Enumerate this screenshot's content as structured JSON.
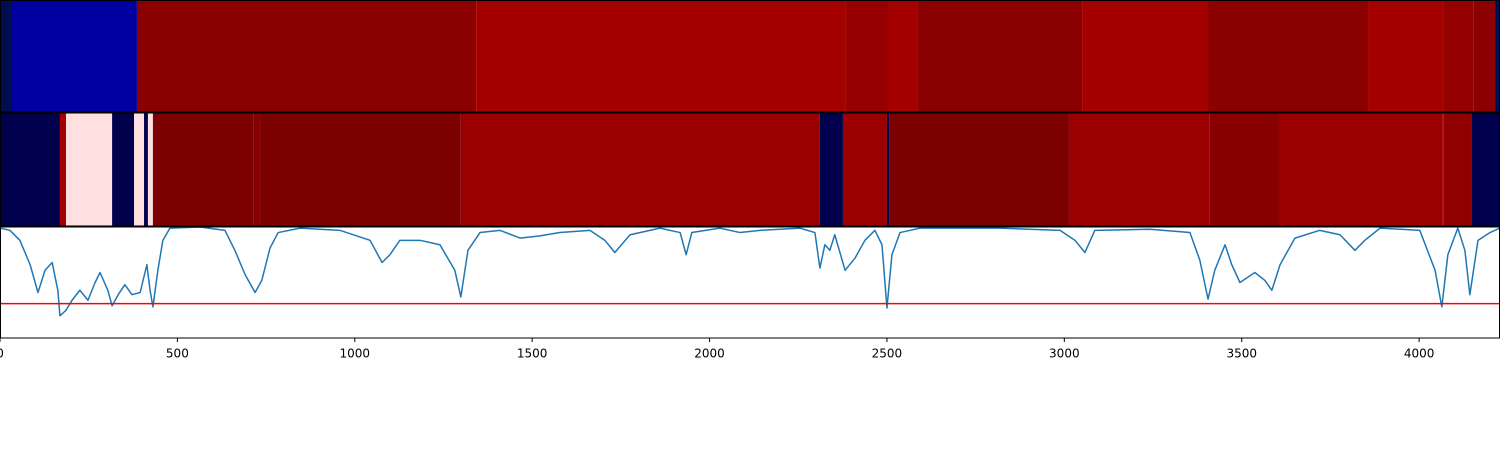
{
  "chart_data": {
    "type": "line",
    "xlim": [
      0,
      4228
    ],
    "xticks": [
      0,
      500,
      1000,
      1500,
      2000,
      2500,
      3000,
      3500,
      4000
    ],
    "ylim": [
      0,
      1
    ],
    "strips": [
      {
        "edges": [
          0,
          31,
          386,
          1342,
          2382,
          2503,
          2585,
          3050,
          3405,
          3856,
          4070,
          4154,
          4214,
          4228
        ],
        "colors": [
          "#000d50",
          "#0000a0",
          "#8b0000",
          "#a40000",
          "#960000",
          "#a40000",
          "#8b0000",
          "#a40000",
          "#8b0000",
          "#a40000",
          "#950000",
          "#8b0000",
          "#000d50"
        ]
      },
      {
        "edges": [
          0,
          169,
          186,
          316,
          378,
          406,
          417,
          431,
          715,
          733,
          1299,
          2311,
          2376,
          2500,
          2506,
          3013,
          3410,
          3605,
          4067,
          4070,
          4149,
          4228
        ],
        "colors": [
          "#00004c",
          "#a00000",
          "#ffe0e0",
          "#00004c",
          "#ffe0e0",
          "#00004c",
          "#ffe0e0",
          "#7d0000",
          "#860000",
          "#7d0000",
          "#9a0000",
          "#00004c",
          "#9a0000",
          "#00004c",
          "#7d0000",
          "#9a0000",
          "#8a0000",
          "#9a0000",
          "#e00000",
          "#900000",
          "#00004c"
        ]
      }
    ],
    "x": [
      0,
      28,
      56,
      85,
      107,
      127,
      147,
      163,
      169,
      186,
      203,
      225,
      248,
      268,
      282,
      304,
      316,
      333,
      352,
      372,
      395,
      414,
      423,
      431,
      445,
      459,
      479,
      564,
      634,
      662,
      691,
      719,
      738,
      761,
      784,
      846,
      958,
      1043,
      1077,
      1099,
      1127,
      1184,
      1240,
      1282,
      1299,
      1319,
      1353,
      1409,
      1466,
      1522,
      1578,
      1663,
      1705,
      1733,
      1776,
      1860,
      1917,
      1934,
      1950,
      2029,
      2086,
      2142,
      2255,
      2297,
      2311,
      2325,
      2339,
      2353,
      2382,
      2410,
      2438,
      2466,
      2486,
      2500,
      2514,
      2537,
      2593,
      2819,
      2988,
      3030,
      3058,
      3086,
      3241,
      3354,
      3382,
      3405,
      3424,
      3453,
      3472,
      3495,
      3537,
      3565,
      3585,
      3608,
      3650,
      3720,
      3777,
      3819,
      3847,
      3890,
      4002,
      4045,
      4064,
      4081,
      4109,
      4129,
      4143,
      4166,
      4200,
      4228
    ],
    "series": [
      {
        "color": "#1f77b4",
        "values": [
          0.99,
          0.97,
          0.88,
          0.66,
          0.41,
          0.61,
          0.68,
          0.43,
          0.2,
          0.25,
          0.34,
          0.43,
          0.34,
          0.5,
          0.59,
          0.43,
          0.29,
          0.39,
          0.48,
          0.39,
          0.41,
          0.66,
          0.43,
          0.28,
          0.61,
          0.88,
          0.99,
          1.0,
          0.97,
          0.79,
          0.57,
          0.41,
          0.52,
          0.81,
          0.95,
          0.99,
          0.97,
          0.88,
          0.68,
          0.75,
          0.88,
          0.88,
          0.84,
          0.61,
          0.37,
          0.79,
          0.95,
          0.97,
          0.9,
          0.92,
          0.95,
          0.97,
          0.88,
          0.77,
          0.93,
          0.99,
          0.95,
          0.75,
          0.95,
          0.99,
          0.95,
          0.97,
          0.99,
          0.95,
          0.63,
          0.84,
          0.79,
          0.93,
          0.61,
          0.72,
          0.88,
          0.97,
          0.84,
          0.27,
          0.75,
          0.95,
          0.99,
          0.99,
          0.97,
          0.88,
          0.77,
          0.97,
          0.98,
          0.95,
          0.7,
          0.35,
          0.61,
          0.84,
          0.66,
          0.5,
          0.59,
          0.52,
          0.43,
          0.66,
          0.9,
          0.97,
          0.93,
          0.79,
          0.88,
          0.99,
          0.97,
          0.61,
          0.28,
          0.75,
          0.99,
          0.79,
          0.39,
          0.88,
          0.95,
          0.99
        ]
      }
    ],
    "threshold": {
      "value": 0.31,
      "color": "#ff0000"
    }
  }
}
